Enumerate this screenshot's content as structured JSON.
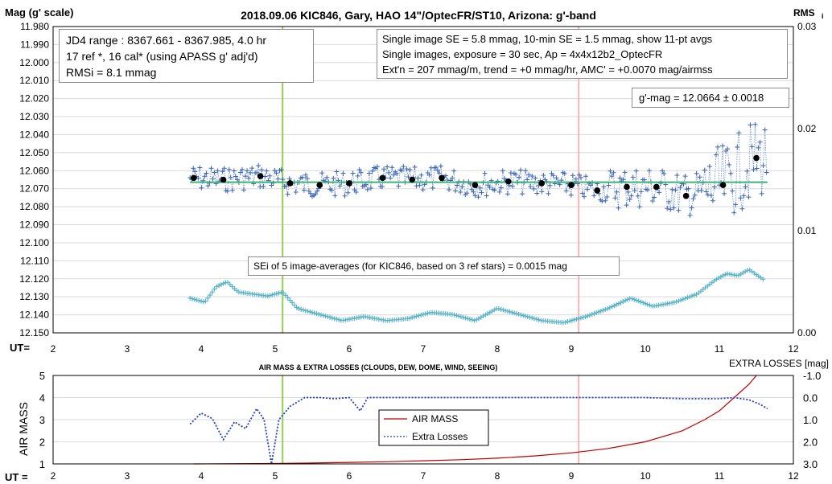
{
  "chart_data": [
    {
      "type": "scatter",
      "title": "2018.09.06  KIC846,  Gary,  HAO  14\"/OptecFR/ST10,  Arizona:  g'-band",
      "ylabel": "Mag (g' scale)",
      "y2label": "RMS",
      "y2label_sub": "i",
      "xlabel": "UT=",
      "xlim": [
        2,
        12
      ],
      "ylim": [
        12.15,
        11.98
      ],
      "y2lim": [
        0.0,
        0.03
      ],
      "x_ticks": [
        "2",
        "3",
        "4",
        "5",
        "6",
        "7",
        "8",
        "9",
        "10",
        "11",
        "12"
      ],
      "y_ticks": [
        "11.980",
        "11.990",
        "12.000",
        "12.010",
        "12.020",
        "12.030",
        "12.040",
        "12.050",
        "12.060",
        "12.070",
        "12.080",
        "12.090",
        "12.100",
        "12.110",
        "12.120",
        "12.130",
        "12.140",
        "12.150"
      ],
      "y2_ticks": [
        "0.03",
        "0.02",
        "0.01",
        "0.00"
      ],
      "grid": true,
      "info_left": [
        "JD4 range : 8367.661 - 8367.985,  4.0  hr",
        "17 ref *, 16 cal* (using APASS g' adj'd)",
        "RMSi = 8.1 mmag"
      ],
      "info_right": [
        "Single image SE = 5.8 mmag, 10-min SE = 1.5 mmag, show  11-pt avgs",
        "Single images, exposure = 30 sec, Ap = 4x4x12b2_OptecFR",
        "Ext'n = 207 mmag/m, trend =  +0 mmag/hr, AMC' = +0.0070 mag/airmss"
      ],
      "mag_box": "g'-mag = 12.0664  ± 0.0018",
      "sei_box": "SEi of 5 image-averages (for KIC846, based on 3 ref stars) = 0.0015  mag",
      "fit_mag": 12.0664,
      "vertical_lines": [
        {
          "x": 5.1,
          "color": "#92d050"
        },
        {
          "x": 9.1,
          "color": "#f4b6b6"
        }
      ],
      "series": [
        {
          "name": "11-pt averages",
          "color": "#000000",
          "x": [
            3.9,
            4.3,
            4.8,
            5.2,
            5.6,
            6.0,
            6.45,
            6.85,
            7.25,
            7.7,
            8.15,
            8.6,
            9.0,
            9.35,
            9.75,
            10.15,
            10.55,
            11.05,
            11.5
          ],
          "y": [
            12.064,
            12.065,
            12.063,
            12.067,
            12.068,
            12.067,
            12.064,
            12.065,
            12.064,
            12.068,
            12.066,
            12.067,
            12.068,
            12.071,
            12.069,
            12.069,
            12.074,
            12.068,
            12.053
          ]
        },
        {
          "name": "RMSi",
          "color": "#5ab4c8",
          "x": [
            3.85,
            4.05,
            4.2,
            4.35,
            4.5,
            4.7,
            4.9,
            5.1,
            5.3,
            5.6,
            5.9,
            6.2,
            6.5,
            6.8,
            7.1,
            7.4,
            7.7,
            8.0,
            8.3,
            8.6,
            8.9,
            9.2,
            9.5,
            9.8,
            10.1,
            10.4,
            10.7,
            10.95,
            11.1,
            11.25,
            11.4,
            11.6
          ],
          "y": [
            0.0034,
            0.003,
            0.0045,
            0.005,
            0.004,
            0.0038,
            0.0036,
            0.004,
            0.0024,
            0.0018,
            0.0012,
            0.0016,
            0.0012,
            0.0014,
            0.002,
            0.0018,
            0.0012,
            0.0024,
            0.0018,
            0.0012,
            0.001,
            0.0016,
            0.0024,
            0.0034,
            0.0026,
            0.003,
            0.0038,
            0.0052,
            0.0058,
            0.0056,
            0.0062,
            0.0052
          ]
        }
      ]
    },
    {
      "type": "line",
      "title": "AIR MASS & EXTRA LOSSES (CLOUDS, DEW, DOME, WIND, SEEING)",
      "ylabel": "AIR MASS",
      "y2label": "EXTRA LOSSES [mag]",
      "xlabel": "UT =",
      "xlim": [
        2,
        12
      ],
      "ylim": [
        1,
        5
      ],
      "y2lim": [
        3.0,
        -1.0
      ],
      "x_ticks": [
        "2",
        "3",
        "4",
        "5",
        "6",
        "7",
        "8",
        "9",
        "10",
        "11",
        "12"
      ],
      "y_ticks": [
        "5",
        "4",
        "3",
        "2",
        "1"
      ],
      "y2_ticks": [
        "-1.0",
        "0.0",
        "1.0",
        "2.0",
        "3.0"
      ],
      "grid": true,
      "legend": {
        "placement": "center",
        "entries": [
          "AIR MASS",
          "Extra Losses"
        ]
      },
      "vertical_lines": [
        {
          "x": 5.1,
          "color": "#92d050"
        },
        {
          "x": 9.1,
          "color": "#f4b6b6"
        }
      ],
      "series": [
        {
          "name": "AIR MASS",
          "color": "#c00000",
          "x": [
            3.9,
            4.5,
            5.0,
            5.5,
            6.0,
            6.5,
            7.0,
            7.5,
            8.0,
            8.5,
            9.0,
            9.5,
            10.0,
            10.5,
            10.8,
            11.0,
            11.2,
            11.4,
            11.5
          ],
          "y": [
            1.0,
            1.01,
            1.02,
            1.04,
            1.07,
            1.1,
            1.14,
            1.19,
            1.26,
            1.36,
            1.5,
            1.7,
            2.0,
            2.5,
            3.0,
            3.4,
            4.0,
            4.6,
            5.0
          ]
        },
        {
          "name": "Extra Losses",
          "color": "#1f3fbf",
          "x": [
            3.85,
            4.0,
            4.15,
            4.3,
            4.45,
            4.6,
            4.75,
            4.85,
            4.95,
            5.05,
            5.2,
            5.4,
            5.6,
            5.8,
            6.0,
            6.15,
            6.25,
            6.4,
            6.6,
            7.0,
            8.0,
            9.0,
            10.0,
            10.5,
            11.0,
            11.2,
            11.4,
            11.55,
            11.65
          ],
          "y": [
            1.2,
            0.7,
            0.95,
            1.9,
            1.1,
            1.4,
            0.5,
            1.0,
            3.0,
            1.0,
            0.4,
            0.0,
            0.0,
            0.05,
            0.0,
            0.6,
            0.0,
            0.0,
            0.0,
            0.0,
            0.0,
            0.0,
            0.0,
            0.05,
            0.05,
            0.0,
            0.1,
            0.3,
            0.5
          ]
        }
      ]
    }
  ]
}
